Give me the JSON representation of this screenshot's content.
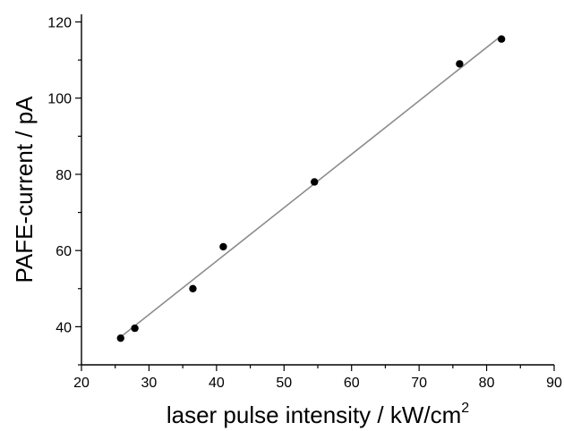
{
  "chart_data": {
    "type": "scatter",
    "title": "",
    "xlabel": "laser pulse intensity / kW/cm",
    "xlabel_superscript": "2",
    "ylabel": "PAFE-current / pA",
    "xlim": [
      20,
      90
    ],
    "ylim": [
      30,
      122
    ],
    "xticks": [
      20,
      30,
      40,
      50,
      60,
      70,
      80,
      90
    ],
    "yticks": [
      40,
      60,
      80,
      100,
      120
    ],
    "grid": false,
    "legend": "none",
    "colors": {
      "points": "#000000",
      "fit": "#8c8c8c",
      "axes": "#000000"
    },
    "series": [
      {
        "points": [
          {
            "x": 25.8,
            "y": 37.0
          },
          {
            "x": 27.9,
            "y": 39.6
          },
          {
            "x": 36.5,
            "y": 50.0
          },
          {
            "x": 41.0,
            "y": 61.0
          },
          {
            "x": 54.5,
            "y": 78.0
          },
          {
            "x": 76.0,
            "y": 109.0
          },
          {
            "x": 82.2,
            "y": 115.5
          }
        ]
      }
    ],
    "fit_line": {
      "x": [
        25.8,
        82.2
      ],
      "y": [
        37.3,
        116.4
      ]
    }
  }
}
